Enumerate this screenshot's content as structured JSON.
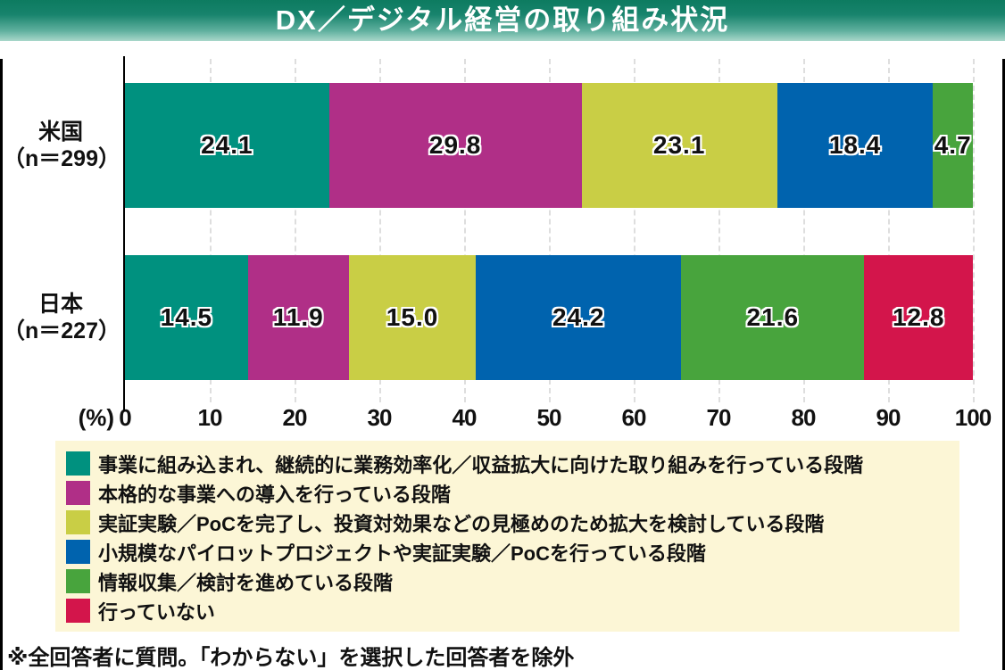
{
  "title": "DX／デジタル経営の取り組み状況",
  "footnote": "※全回答者に質問。「わからない」を選択した回答者を除外",
  "axis": {
    "unit_label": "(%)",
    "ticks": [
      "0",
      "10",
      "20",
      "30",
      "40",
      "50",
      "60",
      "70",
      "80",
      "90",
      "100"
    ]
  },
  "colors": {
    "title_gradient_top": "#0D7B60",
    "title_gradient_bottom": "#A9D7CA",
    "legend_background": "#FCF6D6",
    "frame": "#000000",
    "gridline": "#DEDEDE"
  },
  "chart_data": {
    "type": "bar",
    "variant": "horizontal_stacked",
    "title": "DX／デジタル経営の取り組み状況",
    "xlabel": "(%)",
    "xlim": [
      0,
      100
    ],
    "grid": "vertical-dashed",
    "legend_position": "bottom",
    "categories": [
      {
        "label": "米国",
        "sublabel": "（n＝299）"
      },
      {
        "label": "日本",
        "sublabel": "（n＝227）"
      }
    ],
    "series": [
      {
        "name": "事業に組み込まれ、継続的に業務効率化／収益拡大に向けた取り組みを行っている段階",
        "color": "#00917F",
        "values": [
          24.1,
          14.5
        ]
      },
      {
        "name": "本格的な事業への導入を行っている段階",
        "color": "#B02F87",
        "values": [
          29.8,
          11.9
        ]
      },
      {
        "name": "実証実験／PoCを完了し、投資対効果などの見極めのため拡大を検討している段階",
        "color": "#C9CE45",
        "values": [
          23.1,
          15.0
        ]
      },
      {
        "name": "小規模なパイロットプロジェクトや実証実験／PoCを行っている段階",
        "color": "#0063AE",
        "values": [
          18.4,
          24.2
        ]
      },
      {
        "name": "情報収集／検討を進めている段階",
        "color": "#48A43D",
        "values": [
          4.7,
          21.6
        ]
      },
      {
        "name": "行っていない",
        "color": "#D3154B",
        "values": [
          0,
          12.8
        ]
      }
    ]
  }
}
